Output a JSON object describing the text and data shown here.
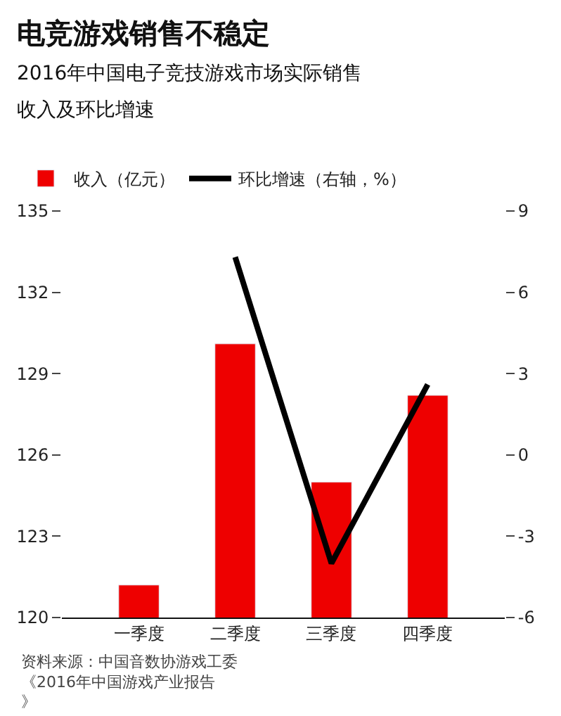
{
  "chart_data": {
    "type": "bar",
    "title": "电竞游戏销售不稳定",
    "subtitle": "2016年中国电子竞技游戏市场实际销售收入及环比增速",
    "categories": [
      "一季度",
      "二季度",
      "三季度",
      "四季度"
    ],
    "series": [
      {
        "name": "收入（亿元）",
        "color": "#ee0000",
        "values": [
          121.2,
          130.1,
          125.0,
          128.2
        ]
      },
      {
        "name": "环比增速（右轴，%）",
        "type": "line",
        "axis": "y2",
        "color": "#000000",
        "values": [
          null,
          7.3,
          -4.0,
          2.6
        ]
      }
    ],
    "ylim": [
      120,
      135
    ],
    "yticks": [
      120,
      123,
      126,
      129,
      132,
      135
    ],
    "y2lim": [
      -6,
      9
    ],
    "y2ticks": [
      -6,
      -3,
      0,
      3,
      6,
      9
    ],
    "grid": false,
    "legend": "top left",
    "marker": "none",
    "line_style": "solid",
    "annotations": [
      "资料来源：中国音数协游戏工委《2016年中国游戏产业报告》"
    ]
  }
}
